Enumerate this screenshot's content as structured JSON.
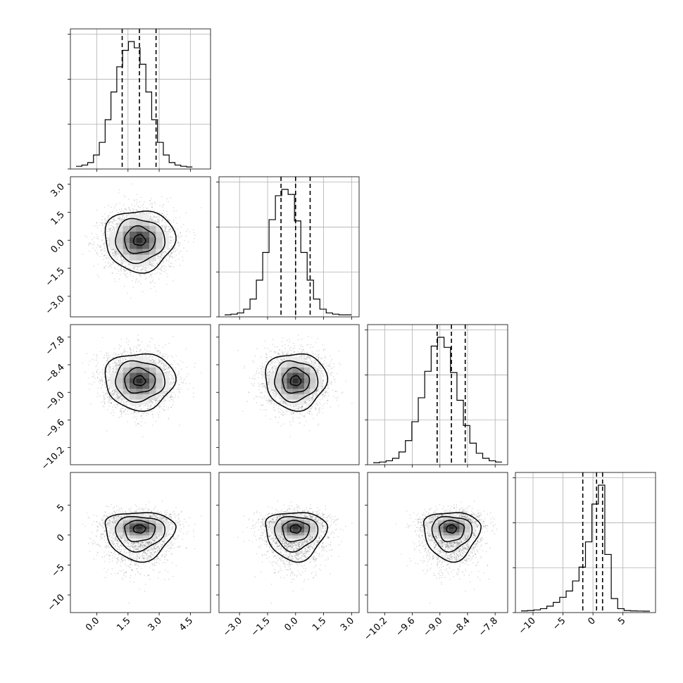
{
  "chart_data": {
    "type": "corner",
    "title": "",
    "parameters": [
      {
        "label": "",
        "mean": 2.05,
        "std": 0.82,
        "range": [
          -1.0,
          5.2
        ],
        "ticks": [
          "0.0",
          "1.5",
          "3.0",
          "4.5"
        ],
        "quantiles": [
          1.22,
          2.05,
          2.85
        ]
      },
      {
        "label": "",
        "mean": 0.0,
        "std": 0.8,
        "range": [
          -3.8,
          3.1
        ],
        "ticks": [
          "−3.0",
          "−1.5",
          "0.0",
          "1.5",
          "3.0"
        ],
        "quantiles": [
          -0.78,
          0.0,
          0.78
        ]
      },
      {
        "label": "",
        "mean": -8.75,
        "std": 0.3,
        "range": [
          -10.45,
          -7.65
        ],
        "ticks": [
          "−10.2",
          "−9.6",
          "−9.0",
          "−8.4",
          "−7.8"
        ],
        "quantiles": [
          -9.06,
          -8.75,
          -8.45
        ]
      },
      {
        "label": "",
        "mean": 0.5,
        "std": 2.3,
        "range": [
          -12.0,
          9.5
        ],
        "ticks": [
          "−10",
          "−5",
          "0",
          "5"
        ],
        "quantiles": [
          -1.7,
          0.6,
          1.6
        ]
      }
    ],
    "y_ticks": [
      null,
      [
        "−3.0",
        "−1.5",
        "0.0",
        "1.5",
        "3.0"
      ],
      [
        "−10.2",
        "−9.6",
        "−9.0",
        "−8.4",
        "−7.8"
      ],
      [
        "−10",
        "−5",
        "0",
        "5"
      ]
    ],
    "histograms": [
      {
        "bins": [
          -1.0,
          4.6
        ],
        "counts": [
          0.01,
          0.02,
          0.04,
          0.1,
          0.2,
          0.38,
          0.6,
          0.8,
          0.93,
          1.0,
          0.95,
          0.82,
          0.6,
          0.38,
          0.2,
          0.1,
          0.04,
          0.02,
          0.01,
          0.005
        ]
      },
      {
        "bins": [
          -3.8,
          3.0
        ],
        "counts": [
          0.005,
          0.01,
          0.02,
          0.05,
          0.13,
          0.28,
          0.5,
          0.76,
          0.95,
          1.0,
          0.96,
          0.75,
          0.5,
          0.28,
          0.13,
          0.05,
          0.02,
          0.01,
          0.005,
          0.005
        ]
      },
      {
        "bins": [
          -10.45,
          -7.65
        ],
        "counts": [
          0.005,
          0.01,
          0.02,
          0.04,
          0.09,
          0.18,
          0.33,
          0.52,
          0.73,
          0.93,
          1.0,
          0.92,
          0.72,
          0.5,
          0.3,
          0.16,
          0.08,
          0.04,
          0.02,
          0.01
        ]
      },
      {
        "bins": [
          -12.0,
          9.5
        ],
        "counts": [
          0.002,
          0.005,
          0.01,
          0.02,
          0.04,
          0.07,
          0.11,
          0.16,
          0.24,
          0.35,
          0.55,
          0.85,
          1.0,
          0.45,
          0.1,
          0.02,
          0.005,
          0.002,
          0.001,
          0.0
        ]
      }
    ],
    "grid": true,
    "legend": "none"
  }
}
